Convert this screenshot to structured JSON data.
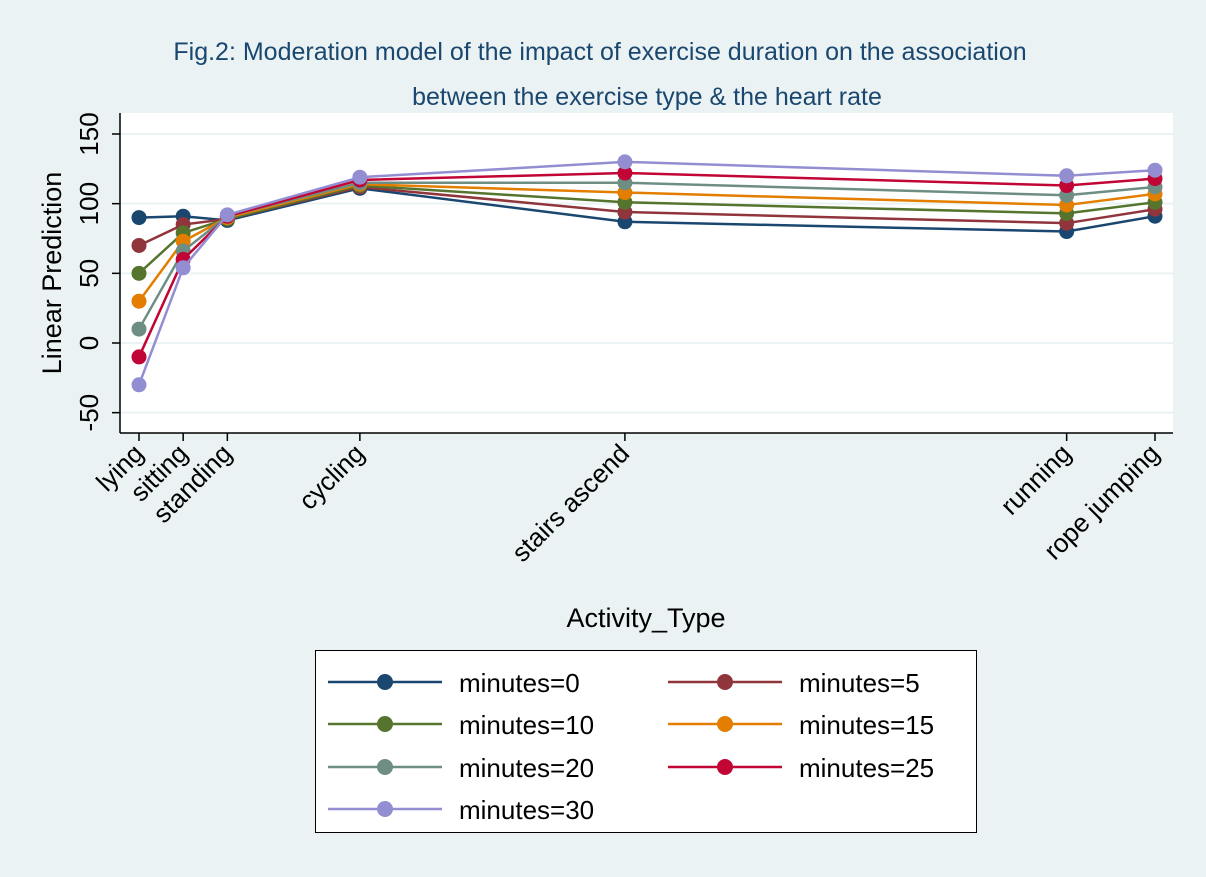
{
  "chart_data": {
    "type": "line",
    "title": "Fig.2: Moderation model of the impact of exercise duration on the association",
    "subtitle": "between the exercise type & the heart rate",
    "xlabel": "Activity_Type",
    "ylabel": "Linear Prediction",
    "ylim": [
      -60,
      160
    ],
    "yticks": [
      -50,
      0,
      50,
      100,
      150
    ],
    "grid": true,
    "legend_placement": "bottom",
    "categories": [
      "lying",
      "sitting",
      "standing",
      "cycling",
      "stairs ascend",
      "running",
      "rope jumping"
    ],
    "x": [
      1,
      2,
      3,
      6,
      12,
      22,
      24
    ],
    "series": [
      {
        "name": "minutes=0",
        "color": "#1a476f",
        "values": [
          90,
          91,
          88,
          111,
          87,
          80,
          91
        ]
      },
      {
        "name": "minutes=5",
        "color": "#90353b",
        "values": [
          70,
          85,
          89,
          112,
          94,
          86,
          96
        ]
      },
      {
        "name": "minutes=10",
        "color": "#55752f",
        "values": [
          50,
          79,
          89,
          113,
          101,
          93,
          101
        ]
      },
      {
        "name": "minutes=15",
        "color": "#e37e00",
        "values": [
          30,
          73,
          90,
          114,
          108,
          99,
          107
        ]
      },
      {
        "name": "minutes=20",
        "color": "#6e8e84",
        "values": [
          10,
          66,
          91,
          115,
          115,
          106,
          112
        ]
      },
      {
        "name": "minutes=25",
        "color": "#c10534",
        "values": [
          -10,
          60,
          91,
          117,
          122,
          113,
          118
        ]
      },
      {
        "name": "minutes=30",
        "color": "#938dd2",
        "values": [
          -30,
          54,
          92,
          119,
          130,
          120,
          124
        ]
      }
    ]
  }
}
